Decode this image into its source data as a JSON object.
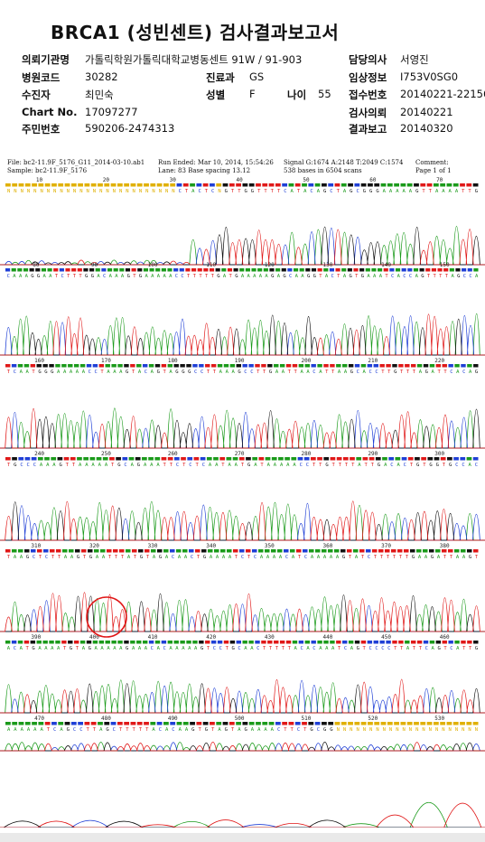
{
  "report": {
    "title": "BRCA1 (성빈센트) 검사결과보고서",
    "fields": [
      {
        "label": "의뢰기관명",
        "value": "가톨릭학원가톨릭대학교병동센트 91W / 91-903"
      },
      {
        "label": "병원코드",
        "value": "30282"
      },
      {
        "label": "수진자",
        "value": "최민숙"
      },
      {
        "label": "Chart No.",
        "value": "17097277"
      },
      {
        "label": "주민번호",
        "value": "590206-2474313"
      },
      {
        "label": "진료과",
        "value": "GS"
      },
      {
        "label": "성별",
        "value": "F"
      },
      {
        "label": "나이",
        "value": "55"
      },
      {
        "label": "담당의사",
        "value": "서영진"
      },
      {
        "label": "임상정보",
        "value": "I753V0SG0"
      },
      {
        "label": "접수번호",
        "value": "20140221-22156"
      },
      {
        "label": "검사의뢰",
        "value": "20140221"
      },
      {
        "label": "결과보고",
        "value": "20140320"
      }
    ]
  },
  "chromatogram": {
    "file": "File: bc2-11.9F_5176_G11_2014-03-10.ab1",
    "sample": "Sample: bc2-11.9F_5176",
    "run_ended": "Run Ended: Mar 10, 2014, 15:54:26",
    "lane": "Lane: 83   Base spacing 13.12",
    "signal": "Signal G:1674 A:2148 T:2049 C:1574",
    "bases": "538 bases in 6504 scans",
    "comment": "Comment:",
    "page": "Page 1 of 1",
    "colors": {
      "A": "#1a9a1a",
      "C": "#1f3fd6",
      "G": "#111111",
      "T": "#e01818",
      "N": "#e0b000"
    },
    "annotation": "red-circle-mark",
    "rows": [
      {
        "seq": "NNNNNNNNNNNNNNNNNNNNNNNNNNCTACTCNGTTGGTTTTCATACAGCTAGCGGGAAAAAGTTAAAATTG",
        "ticks": [
          "10",
          "20",
          "30",
          "40",
          "50",
          "60",
          "70"
        ]
      },
      {
        "seq": "CAAAGGAATCTTTGGACAAAGTGAAAAACCTTTTTGATGAAAAAGAGCAAGGTACTAGTGAAATCACCAGTTTTAGCCA",
        "ticks": [
          "80",
          "90",
          "100",
          "110",
          "120",
          "130",
          "140",
          "150"
        ]
      },
      {
        "seq": "TCAATGGGAAAAACCTAAAGTACAGTAGGGCCTTAAAGCCTTGAATTAACATTAAGCACCTTGTTTAGATTCACAG",
        "ticks": [
          "160",
          "170",
          "180",
          "190",
          "200",
          "210",
          "220"
        ]
      },
      {
        "seq": "TGCCCAAAGTTAAAAATGCAGAAATTCTCTCAATAATGATAAAAACCTTGTTTTATTGACACTGTGGTGCCAC",
        "ticks": [
          "240",
          "250",
          "260",
          "270",
          "280",
          "290",
          "300"
        ]
      },
      {
        "seq": "TAAGCTCTTAAGTGAATTTATGTAGACAACTGAAAATCTCAAAACATCAAAAAGTATCTTTTTTGAAGATTAAGT",
        "ticks": [
          "310",
          "320",
          "330",
          "340",
          "350",
          "360",
          "370",
          "380"
        ]
      },
      {
        "seq": "ACATGAAAATGTAGAAAAAGAAACACAAAAAGTCCTGCAACTTTTTACACAAATCAGTCCCCTTATTCAGTCATTG",
        "ticks": [
          "390",
          "400",
          "410",
          "420",
          "430",
          "440",
          "450",
          "460"
        ]
      },
      {
        "seq": "AAAAAATCAGCCTTAGCTTTTTACACAAGTGTAGTAGAAAACTTCTGCGGNNNNNNNNNNNNNNNNNNNNNN",
        "ticks": [
          "470",
          "480",
          "490",
          "500",
          "510",
          "520",
          "530"
        ]
      },
      {
        "seq": "",
        "ticks": []
      }
    ]
  }
}
